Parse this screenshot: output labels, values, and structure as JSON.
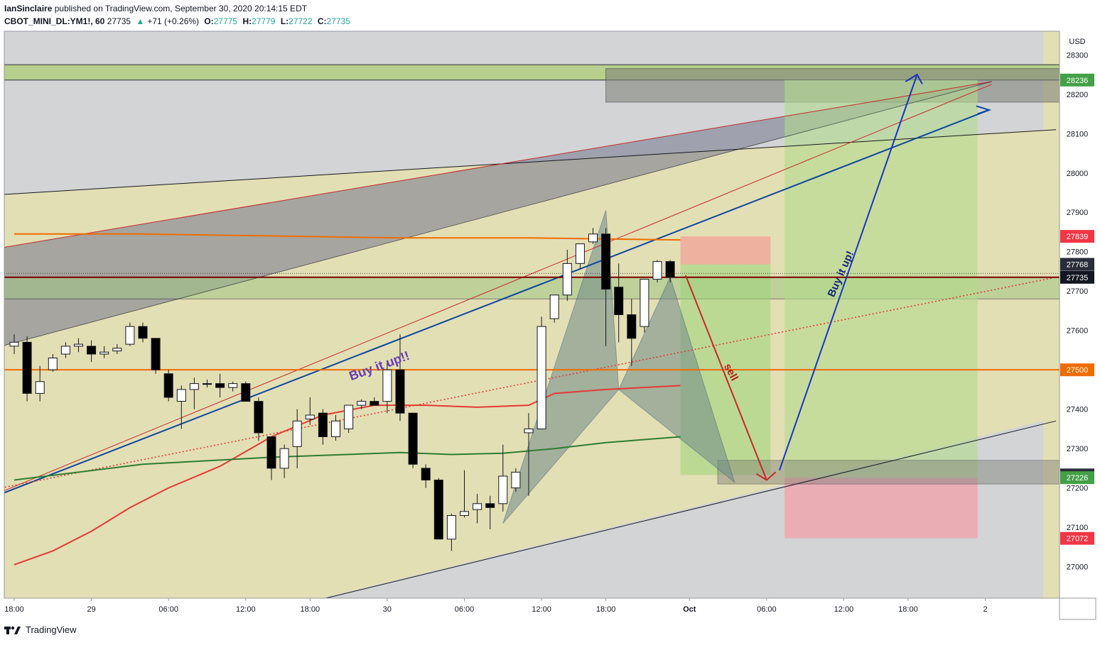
{
  "header": {
    "author": "IanSinclaire",
    "published_text": "published on TradingView.com, September 30, 2020 20:14:15 EDT",
    "symbol": "CBOT_MINI_DL:YM1!, 60",
    "last": "27735",
    "change_arrow": "▲",
    "change": "+71 (+0.26%)",
    "o_label": "O:",
    "o_value": "27775",
    "h_label": "H:",
    "h_value": "27779",
    "l_label": "L:",
    "l_value": "27722",
    "c_label": "C:",
    "c_value": "27735"
  },
  "footer": {
    "brand": "TradingView"
  },
  "chart_data": {
    "type": "candlestick",
    "currency": "USD",
    "y_range": [
      26920,
      28360
    ],
    "y_ticks": [
      27000,
      27100,
      27200,
      27300,
      27400,
      27500,
      27600,
      27700,
      27800,
      27900,
      28000,
      28100,
      28200,
      28300
    ],
    "x_tick_labels": [
      {
        "label": "18:00",
        "t": 0
      },
      {
        "label": "29",
        "t": 6
      },
      {
        "label": "06:00",
        "t": 12
      },
      {
        "label": "12:00",
        "t": 18
      },
      {
        "label": "18:00",
        "t": 23
      },
      {
        "label": "30",
        "t": 29
      },
      {
        "label": "06:00",
        "t": 35
      },
      {
        "label": "12:00",
        "t": 41
      },
      {
        "label": "18:00",
        "t": 46
      },
      {
        "label": "Oct",
        "t": 52.5
      },
      {
        "label": "06:00",
        "t": 58.5
      },
      {
        "label": "12:00",
        "t": 64.5
      },
      {
        "label": "18:00",
        "t": 69.5
      },
      {
        "label": "2",
        "t": 75.5
      }
    ],
    "candles": [
      {
        "o": 27560,
        "h": 27590,
        "l": 27540,
        "c": 27570
      },
      {
        "o": 27570,
        "h": 27585,
        "l": 27420,
        "c": 27440
      },
      {
        "o": 27440,
        "h": 27510,
        "l": 27420,
        "c": 27470
      },
      {
        "o": 27500,
        "h": 27540,
        "l": 27495,
        "c": 27530
      },
      {
        "o": 27540,
        "h": 27570,
        "l": 27530,
        "c": 27560
      },
      {
        "o": 27560,
        "h": 27580,
        "l": 27545,
        "c": 27565
      },
      {
        "o": 27560,
        "h": 27575,
        "l": 27520,
        "c": 27540
      },
      {
        "o": 27540,
        "h": 27560,
        "l": 27530,
        "c": 27545
      },
      {
        "o": 27548,
        "h": 27565,
        "l": 27540,
        "c": 27555
      },
      {
        "o": 27565,
        "h": 27620,
        "l": 27560,
        "c": 27610
      },
      {
        "o": 27610,
        "h": 27620,
        "l": 27570,
        "c": 27580
      },
      {
        "o": 27580,
        "h": 27580,
        "l": 27490,
        "c": 27500
      },
      {
        "o": 27490,
        "h": 27500,
        "l": 27420,
        "c": 27430
      },
      {
        "o": 27420,
        "h": 27460,
        "l": 27350,
        "c": 27450
      },
      {
        "o": 27450,
        "h": 27480,
        "l": 27400,
        "c": 27465
      },
      {
        "o": 27465,
        "h": 27475,
        "l": 27455,
        "c": 27463
      },
      {
        "o": 27465,
        "h": 27490,
        "l": 27430,
        "c": 27455
      },
      {
        "o": 27455,
        "h": 27470,
        "l": 27445,
        "c": 27465
      },
      {
        "o": 27465,
        "h": 27470,
        "l": 27420,
        "c": 27420
      },
      {
        "o": 27420,
        "h": 27430,
        "l": 27320,
        "c": 27340
      },
      {
        "o": 27330,
        "h": 27330,
        "l": 27220,
        "c": 27250
      },
      {
        "o": 27250,
        "h": 27310,
        "l": 27225,
        "c": 27300
      },
      {
        "o": 27305,
        "h": 27400,
        "l": 27250,
        "c": 27370
      },
      {
        "o": 27375,
        "h": 27430,
        "l": 27360,
        "c": 27385
      },
      {
        "o": 27390,
        "h": 27400,
        "l": 27310,
        "c": 27330
      },
      {
        "o": 27330,
        "h": 27385,
        "l": 27320,
        "c": 27370
      },
      {
        "o": 27350,
        "h": 27400,
        "l": 27340,
        "c": 27410
      },
      {
        "o": 27410,
        "h": 27425,
        "l": 27400,
        "c": 27420
      },
      {
        "o": 27420,
        "h": 27430,
        "l": 27410,
        "c": 27410
      },
      {
        "o": 27420,
        "h": 27520,
        "l": 27390,
        "c": 27500
      },
      {
        "o": 27500,
        "h": 27590,
        "l": 27370,
        "c": 27390
      },
      {
        "o": 27390,
        "h": 27390,
        "l": 27250,
        "c": 27260
      },
      {
        "o": 27250,
        "h": 27260,
        "l": 27200,
        "c": 27220
      },
      {
        "o": 27220,
        "h": 27225,
        "l": 27070,
        "c": 27070
      },
      {
        "o": 27070,
        "h": 27135,
        "l": 27040,
        "c": 27130
      },
      {
        "o": 27130,
        "h": 27245,
        "l": 27125,
        "c": 27140
      },
      {
        "o": 27145,
        "h": 27185,
        "l": 27110,
        "c": 27160
      },
      {
        "o": 27160,
        "h": 27180,
        "l": 27095,
        "c": 27150
      },
      {
        "o": 27160,
        "h": 27310,
        "l": 27140,
        "c": 27230
      },
      {
        "o": 27200,
        "h": 27250,
        "l": 27190,
        "c": 27240
      },
      {
        "o": 27340,
        "h": 27390,
        "l": 27180,
        "c": 27350
      },
      {
        "o": 27350,
        "h": 27635,
        "l": 27350,
        "c": 27610
      },
      {
        "o": 27630,
        "h": 27690,
        "l": 27620,
        "c": 27690
      },
      {
        "o": 27690,
        "h": 27805,
        "l": 27675,
        "c": 27770
      },
      {
        "o": 27770,
        "h": 27820,
        "l": 27755,
        "c": 27820
      },
      {
        "o": 27825,
        "h": 27860,
        "l": 27820,
        "c": 27845
      },
      {
        "o": 27845,
        "h": 27860,
        "l": 27560,
        "c": 27705
      },
      {
        "o": 27710,
        "h": 27770,
        "l": 27570,
        "c": 27640
      },
      {
        "o": 27640,
        "h": 27680,
        "l": 27510,
        "c": 27580
      },
      {
        "o": 27610,
        "h": 27720,
        "l": 27595,
        "c": 27730
      },
      {
        "o": 27730,
        "h": 27779,
        "l": 27722,
        "c": 27775
      },
      {
        "o": 27775,
        "h": 27779,
        "l": 27722,
        "c": 27735
      }
    ],
    "price_labels": [
      {
        "value": 28236,
        "color": "#43a047"
      },
      {
        "value": 27839,
        "color": "#f23645"
      },
      {
        "value": 27768,
        "color": "#2a2e39"
      },
      {
        "value": 27735,
        "color": "#131722"
      },
      {
        "value": 27500,
        "color": "#ef6c00"
      },
      {
        "value": 27233,
        "color": "#2a2e39"
      },
      {
        "value": 27226,
        "color": "#43a047"
      },
      {
        "value": 27072,
        "color": "#f23645"
      }
    ],
    "annotations": [
      {
        "text": "Buy it up!!",
        "color": "#673ab7"
      },
      {
        "text": "sell",
        "color": "#b71c1c"
      },
      {
        "text": "Buy it up!",
        "color": "#1a237e"
      }
    ],
    "colors": {
      "up_body": "#ffffff",
      "down_body": "#000000",
      "background": "#e3dfb4",
      "gray_zone": "#cfd2dc"
    }
  }
}
